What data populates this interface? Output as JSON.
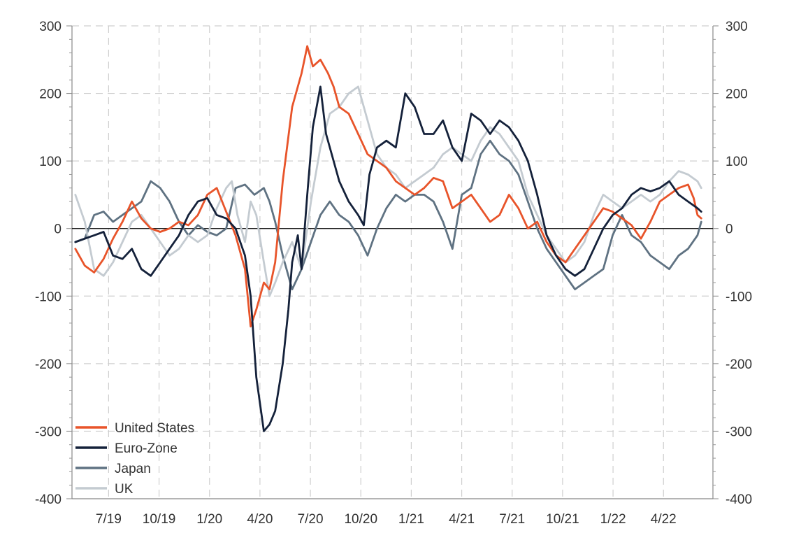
{
  "chart_data": {
    "type": "line",
    "title": "",
    "xlabel": "",
    "ylabel": "",
    "ylim": [
      -400,
      300
    ],
    "y_ticks": [
      300,
      200,
      100,
      0,
      -100,
      -200,
      -300,
      -400
    ],
    "y_tick_labels": [
      "300",
      "200",
      "100",
      "0",
      "-100",
      "-200",
      "-300",
      "-400"
    ],
    "x_range": [
      "4/19",
      "7/22"
    ],
    "x_tick_labels": [
      "7/19",
      "10/19",
      "1/20",
      "4/20",
      "7/20",
      "10/20",
      "1/21",
      "4/21",
      "7/21",
      "10/21",
      "1/22",
      "4/22"
    ],
    "grid": true,
    "legend_position": "bottom-left",
    "series": [
      {
        "name": "United States",
        "color": "#E8542A",
        "points": [
          [
            0,
            -30
          ],
          [
            0.5,
            -55
          ],
          [
            1,
            -65
          ],
          [
            1.5,
            -45
          ],
          [
            2,
            -15
          ],
          [
            2.5,
            10
          ],
          [
            3,
            40
          ],
          [
            3.5,
            15
          ],
          [
            4,
            0
          ],
          [
            4.5,
            -5
          ],
          [
            5,
            0
          ],
          [
            5.5,
            10
          ],
          [
            6,
            5
          ],
          [
            6.5,
            20
          ],
          [
            7,
            50
          ],
          [
            7.5,
            60
          ],
          [
            8,
            25
          ],
          [
            8.5,
            -10
          ],
          [
            9,
            -60
          ],
          [
            9.3,
            -145
          ],
          [
            9.6,
            -120
          ],
          [
            10,
            -80
          ],
          [
            10.3,
            -90
          ],
          [
            10.6,
            -50
          ],
          [
            11,
            70
          ],
          [
            11.5,
            180
          ],
          [
            12,
            230
          ],
          [
            12.3,
            270
          ],
          [
            12.6,
            240
          ],
          [
            13,
            250
          ],
          [
            13.4,
            230
          ],
          [
            13.7,
            210
          ],
          [
            14,
            180
          ],
          [
            14.5,
            170
          ],
          [
            15,
            140
          ],
          [
            15.5,
            110
          ],
          [
            16,
            100
          ],
          [
            16.5,
            90
          ],
          [
            17,
            70
          ],
          [
            17.5,
            60
          ],
          [
            18,
            50
          ],
          [
            18.5,
            60
          ],
          [
            19,
            75
          ],
          [
            19.5,
            70
          ],
          [
            20,
            30
          ],
          [
            20.5,
            40
          ],
          [
            21,
            50
          ],
          [
            21.5,
            30
          ],
          [
            22,
            10
          ],
          [
            22.5,
            20
          ],
          [
            23,
            50
          ],
          [
            23.5,
            30
          ],
          [
            24,
            0
          ],
          [
            24.5,
            10
          ],
          [
            25,
            -20
          ],
          [
            25.5,
            -40
          ],
          [
            26,
            -50
          ],
          [
            26.5,
            -30
          ],
          [
            27,
            -10
          ],
          [
            27.5,
            10
          ],
          [
            28,
            30
          ],
          [
            28.5,
            25
          ],
          [
            29,
            15
          ],
          [
            29.5,
            5
          ],
          [
            30,
            -15
          ],
          [
            30.5,
            10
          ],
          [
            31,
            40
          ],
          [
            31.5,
            50
          ],
          [
            32,
            60
          ],
          [
            32.5,
            65
          ],
          [
            32.8,
            45
          ],
          [
            33,
            20
          ],
          [
            33.2,
            15
          ]
        ]
      },
      {
        "name": "Euro-Zone",
        "color": "#14213A",
        "points": [
          [
            0,
            -20
          ],
          [
            1,
            -10
          ],
          [
            1.5,
            -5
          ],
          [
            2,
            -40
          ],
          [
            2.5,
            -45
          ],
          [
            3,
            -30
          ],
          [
            3.5,
            -60
          ],
          [
            4,
            -70
          ],
          [
            4.5,
            -50
          ],
          [
            5,
            -30
          ],
          [
            5.5,
            -10
          ],
          [
            6,
            20
          ],
          [
            6.5,
            40
          ],
          [
            7,
            45
          ],
          [
            7.5,
            20
          ],
          [
            8,
            15
          ],
          [
            8.5,
            0
          ],
          [
            9,
            -40
          ],
          [
            9.3,
            -100
          ],
          [
            9.6,
            -220
          ],
          [
            10,
            -300
          ],
          [
            10.3,
            -290
          ],
          [
            10.6,
            -270
          ],
          [
            11,
            -200
          ],
          [
            11.3,
            -120
          ],
          [
            11.5,
            -50
          ],
          [
            11.8,
            -10
          ],
          [
            12,
            -60
          ],
          [
            12.3,
            50
          ],
          [
            12.6,
            150
          ],
          [
            13,
            210
          ],
          [
            13.3,
            140
          ],
          [
            13.6,
            110
          ],
          [
            14,
            70
          ],
          [
            14.5,
            40
          ],
          [
            15,
            20
          ],
          [
            15.3,
            5
          ],
          [
            15.6,
            80
          ],
          [
            16,
            120
          ],
          [
            16.5,
            130
          ],
          [
            17,
            120
          ],
          [
            17.5,
            200
          ],
          [
            18,
            180
          ],
          [
            18.5,
            140
          ],
          [
            19,
            140
          ],
          [
            19.5,
            160
          ],
          [
            20,
            120
          ],
          [
            20.5,
            100
          ],
          [
            21,
            170
          ],
          [
            21.5,
            160
          ],
          [
            22,
            140
          ],
          [
            22.5,
            160
          ],
          [
            23,
            150
          ],
          [
            23.5,
            130
          ],
          [
            24,
            100
          ],
          [
            24.5,
            50
          ],
          [
            25,
            -10
          ],
          [
            25.5,
            -40
          ],
          [
            26,
            -60
          ],
          [
            26.5,
            -70
          ],
          [
            27,
            -60
          ],
          [
            27.5,
            -30
          ],
          [
            28,
            0
          ],
          [
            28.5,
            20
          ],
          [
            29,
            30
          ],
          [
            29.5,
            50
          ],
          [
            30,
            60
          ],
          [
            30.5,
            55
          ],
          [
            31,
            60
          ],
          [
            31.5,
            70
          ],
          [
            32,
            50
          ],
          [
            32.5,
            40
          ],
          [
            33,
            30
          ],
          [
            33.2,
            25
          ]
        ]
      },
      {
        "name": "Japan",
        "color": "#5F7282",
        "points": [
          [
            0,
            -20
          ],
          [
            0.5,
            -15
          ],
          [
            1,
            20
          ],
          [
            1.5,
            25
          ],
          [
            2,
            10
          ],
          [
            2.5,
            20
          ],
          [
            3,
            30
          ],
          [
            3.5,
            40
          ],
          [
            4,
            70
          ],
          [
            4.5,
            60
          ],
          [
            5,
            40
          ],
          [
            5.5,
            10
          ],
          [
            6,
            -10
          ],
          [
            6.5,
            5
          ],
          [
            7,
            -5
          ],
          [
            7.5,
            -10
          ],
          [
            8,
            0
          ],
          [
            8.5,
            60
          ],
          [
            9,
            65
          ],
          [
            9.5,
            50
          ],
          [
            10,
            60
          ],
          [
            10.3,
            40
          ],
          [
            10.6,
            10
          ],
          [
            11,
            -40
          ],
          [
            11.5,
            -90
          ],
          [
            12,
            -60
          ],
          [
            12.5,
            -20
          ],
          [
            13,
            20
          ],
          [
            13.5,
            40
          ],
          [
            14,
            20
          ],
          [
            14.5,
            10
          ],
          [
            15,
            -10
          ],
          [
            15.5,
            -40
          ],
          [
            16,
            0
          ],
          [
            16.5,
            30
          ],
          [
            17,
            50
          ],
          [
            17.5,
            40
          ],
          [
            18,
            50
          ],
          [
            18.5,
            50
          ],
          [
            19,
            40
          ],
          [
            19.5,
            10
          ],
          [
            20,
            -30
          ],
          [
            20.5,
            50
          ],
          [
            21,
            60
          ],
          [
            21.5,
            110
          ],
          [
            22,
            130
          ],
          [
            22.5,
            110
          ],
          [
            23,
            100
          ],
          [
            23.5,
            80
          ],
          [
            24,
            40
          ],
          [
            24.5,
            0
          ],
          [
            25,
            -30
          ],
          [
            25.5,
            -50
          ],
          [
            26,
            -70
          ],
          [
            26.5,
            -90
          ],
          [
            27,
            -80
          ],
          [
            27.5,
            -70
          ],
          [
            28,
            -60
          ],
          [
            28.5,
            -10
          ],
          [
            29,
            20
          ],
          [
            29.5,
            -10
          ],
          [
            30,
            -20
          ],
          [
            30.5,
            -40
          ],
          [
            31,
            -50
          ],
          [
            31.5,
            -60
          ],
          [
            32,
            -40
          ],
          [
            32.5,
            -30
          ],
          [
            33,
            -10
          ],
          [
            33.2,
            10
          ]
        ]
      },
      {
        "name": "UK",
        "color": "#C4CBD1",
        "points": [
          [
            0,
            50
          ],
          [
            0.5,
            10
          ],
          [
            1,
            -60
          ],
          [
            1.5,
            -70
          ],
          [
            2,
            -50
          ],
          [
            2.5,
            -20
          ],
          [
            3,
            10
          ],
          [
            3.5,
            20
          ],
          [
            4,
            0
          ],
          [
            4.5,
            -20
          ],
          [
            5,
            -40
          ],
          [
            5.5,
            -30
          ],
          [
            6,
            -10
          ],
          [
            6.5,
            -20
          ],
          [
            7,
            -10
          ],
          [
            7.5,
            30
          ],
          [
            8,
            60
          ],
          [
            8.3,
            70
          ],
          [
            8.6,
            20
          ],
          [
            9,
            -20
          ],
          [
            9.3,
            40
          ],
          [
            9.6,
            20
          ],
          [
            10,
            -50
          ],
          [
            10.3,
            -100
          ],
          [
            10.6,
            -80
          ],
          [
            11,
            -50
          ],
          [
            11.5,
            -20
          ],
          [
            12,
            -60
          ],
          [
            12.5,
            40
          ],
          [
            13,
            120
          ],
          [
            13.5,
            170
          ],
          [
            14,
            180
          ],
          [
            14.5,
            200
          ],
          [
            15,
            210
          ],
          [
            15.3,
            180
          ],
          [
            15.6,
            150
          ],
          [
            16,
            110
          ],
          [
            16.5,
            90
          ],
          [
            17,
            80
          ],
          [
            17.5,
            60
          ],
          [
            18,
            70
          ],
          [
            18.5,
            80
          ],
          [
            19,
            90
          ],
          [
            19.5,
            110
          ],
          [
            20,
            120
          ],
          [
            20.5,
            110
          ],
          [
            21,
            100
          ],
          [
            21.5,
            130
          ],
          [
            22,
            150
          ],
          [
            22.5,
            140
          ],
          [
            23,
            120
          ],
          [
            23.5,
            100
          ],
          [
            24,
            50
          ],
          [
            24.5,
            20
          ],
          [
            25,
            -10
          ],
          [
            25.5,
            -30
          ],
          [
            26,
            -50
          ],
          [
            26.5,
            -40
          ],
          [
            27,
            -20
          ],
          [
            27.5,
            20
          ],
          [
            28,
            50
          ],
          [
            28.5,
            40
          ],
          [
            29,
            30
          ],
          [
            29.5,
            40
          ],
          [
            30,
            50
          ],
          [
            30.5,
            40
          ],
          [
            31,
            50
          ],
          [
            31.5,
            70
          ],
          [
            32,
            85
          ],
          [
            32.5,
            80
          ],
          [
            33,
            70
          ],
          [
            33.2,
            60
          ]
        ]
      }
    ]
  }
}
